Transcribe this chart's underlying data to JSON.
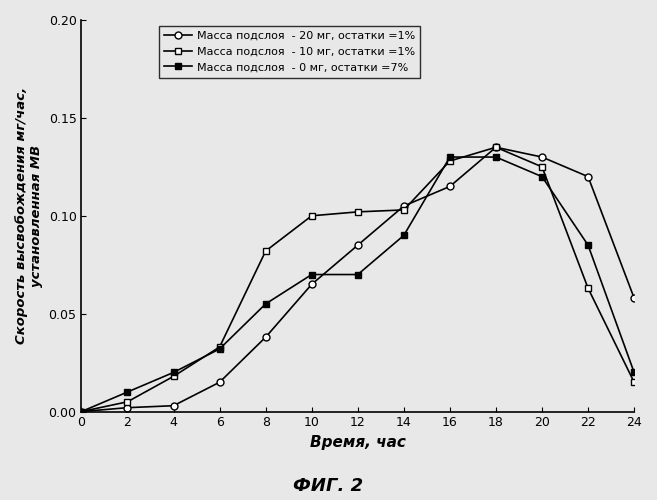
{
  "x": [
    0,
    2,
    4,
    6,
    8,
    10,
    12,
    14,
    16,
    18,
    20,
    22,
    24
  ],
  "series1": {
    "label": "Масса подслоя  - 20 мг, остатки =1%",
    "y": [
      0.0,
      0.002,
      0.003,
      0.015,
      0.038,
      0.065,
      0.085,
      0.105,
      0.115,
      0.135,
      0.13,
      0.12,
      0.058
    ],
    "marker": "o",
    "linestyle": "-"
  },
  "series2": {
    "label": "Масса подслоя  - 10 мг, остатки =1%",
    "y": [
      0.0,
      0.005,
      0.018,
      0.033,
      0.082,
      0.1,
      0.102,
      0.103,
      0.128,
      0.135,
      0.125,
      0.063,
      0.015
    ],
    "marker": "s",
    "linestyle": "-"
  },
  "series3": {
    "label": "Масса подслоя  - 0 мг, остатки =7%",
    "y": [
      0.0,
      0.01,
      0.02,
      0.032,
      0.055,
      0.07,
      0.07,
      0.09,
      0.13,
      0.13,
      0.12,
      0.085,
      0.02
    ],
    "marker": "s",
    "linestyle": "-"
  },
  "xlabel": "Время, час",
  "ylabel": "Скорость высвобождения мг/час,\nустановленная МВ",
  "fig_label": "ФИГ. 2",
  "xlim": [
    0,
    24
  ],
  "ylim": [
    0.0,
    0.2
  ],
  "xticks": [
    0,
    2,
    4,
    6,
    8,
    10,
    12,
    14,
    16,
    18,
    20,
    22,
    24
  ],
  "yticks": [
    0.0,
    0.05,
    0.1,
    0.15,
    0.2
  ],
  "background_color": "#e8e8e8",
  "line_color": "#000000"
}
